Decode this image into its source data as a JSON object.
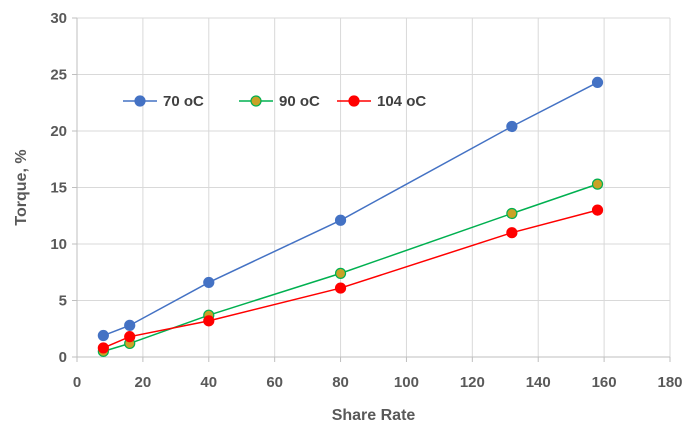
{
  "chart_data": {
    "type": "line",
    "title": "",
    "xlabel": "Share Rate",
    "ylabel": "Torque, %",
    "xlim": [
      0,
      180
    ],
    "ylim": [
      0,
      30
    ],
    "xticks": [
      "0",
      "20",
      "40",
      "60",
      "80",
      "100",
      "120",
      "140",
      "160",
      "180"
    ],
    "yticks": [
      "0",
      "5",
      "10",
      "15",
      "20",
      "25",
      "30"
    ],
    "grid": true,
    "legend_position": "top-left",
    "series": [
      {
        "name": "70 oC",
        "color": "#4472c4",
        "marker_color": "#4472c4",
        "x": [
          8,
          16,
          40,
          80,
          132,
          158
        ],
        "y": [
          1.9,
          2.8,
          6.6,
          12.1,
          20.4,
          24.3
        ]
      },
      {
        "name": "90 oC",
        "color": "#00b050",
        "marker_color": "#c9a227",
        "x": [
          8,
          16,
          40,
          80,
          132,
          158
        ],
        "y": [
          0.5,
          1.2,
          3.7,
          7.4,
          12.7,
          15.3
        ]
      },
      {
        "name": "104 oC",
        "color": "#ff0000",
        "marker_color": "#ff0000",
        "x": [
          8,
          16,
          40,
          80,
          132,
          158
        ],
        "y": [
          0.8,
          1.8,
          3.2,
          6.1,
          11.0,
          13.0
        ]
      }
    ]
  }
}
